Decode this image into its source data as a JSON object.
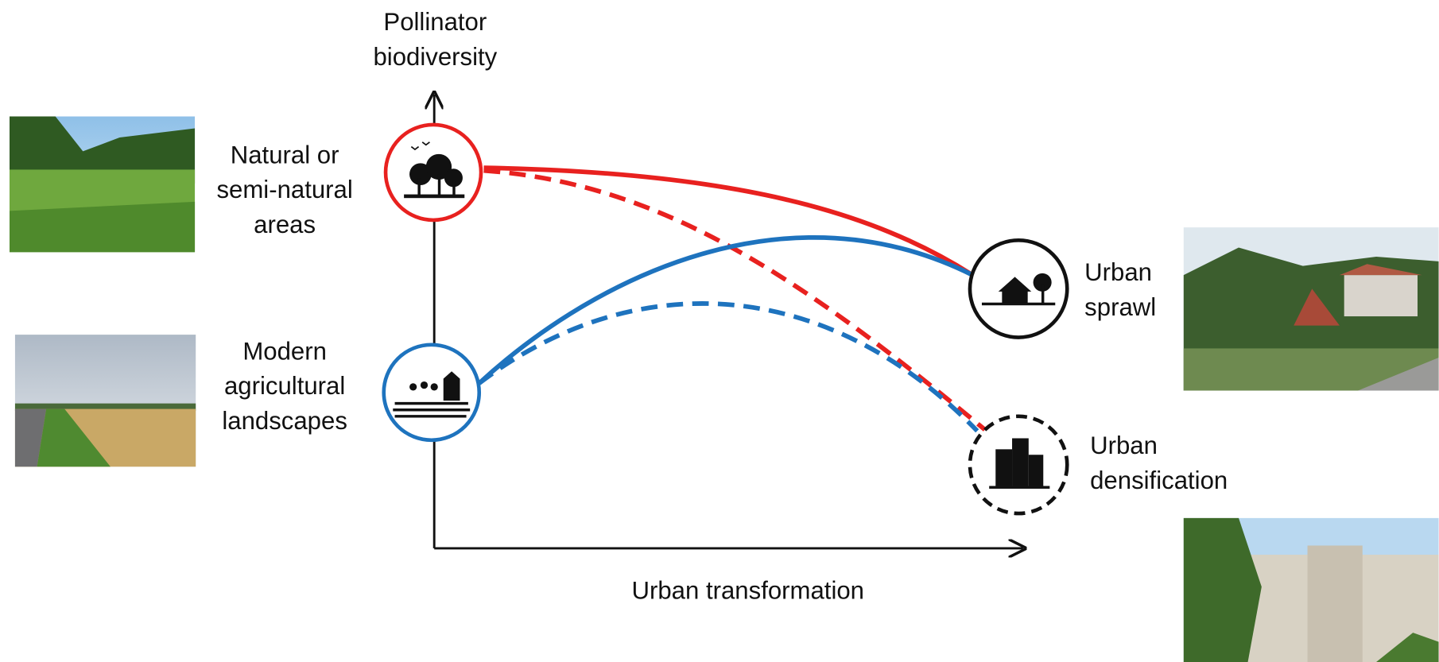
{
  "y_axis": {
    "label": [
      "Pollinator",
      "biodiversity"
    ]
  },
  "x_axis": {
    "label": "Urban transformation"
  },
  "nodes": [
    {
      "label": [
        "Natural or",
        "semi-natural",
        "areas"
      ]
    },
    {
      "label": [
        "Modern",
        "agricultural",
        "landscapes"
      ]
    },
    {
      "label": [
        "Urban",
        "sprawl"
      ]
    },
    {
      "label": [
        "Urban",
        "densification"
      ]
    }
  ]
}
